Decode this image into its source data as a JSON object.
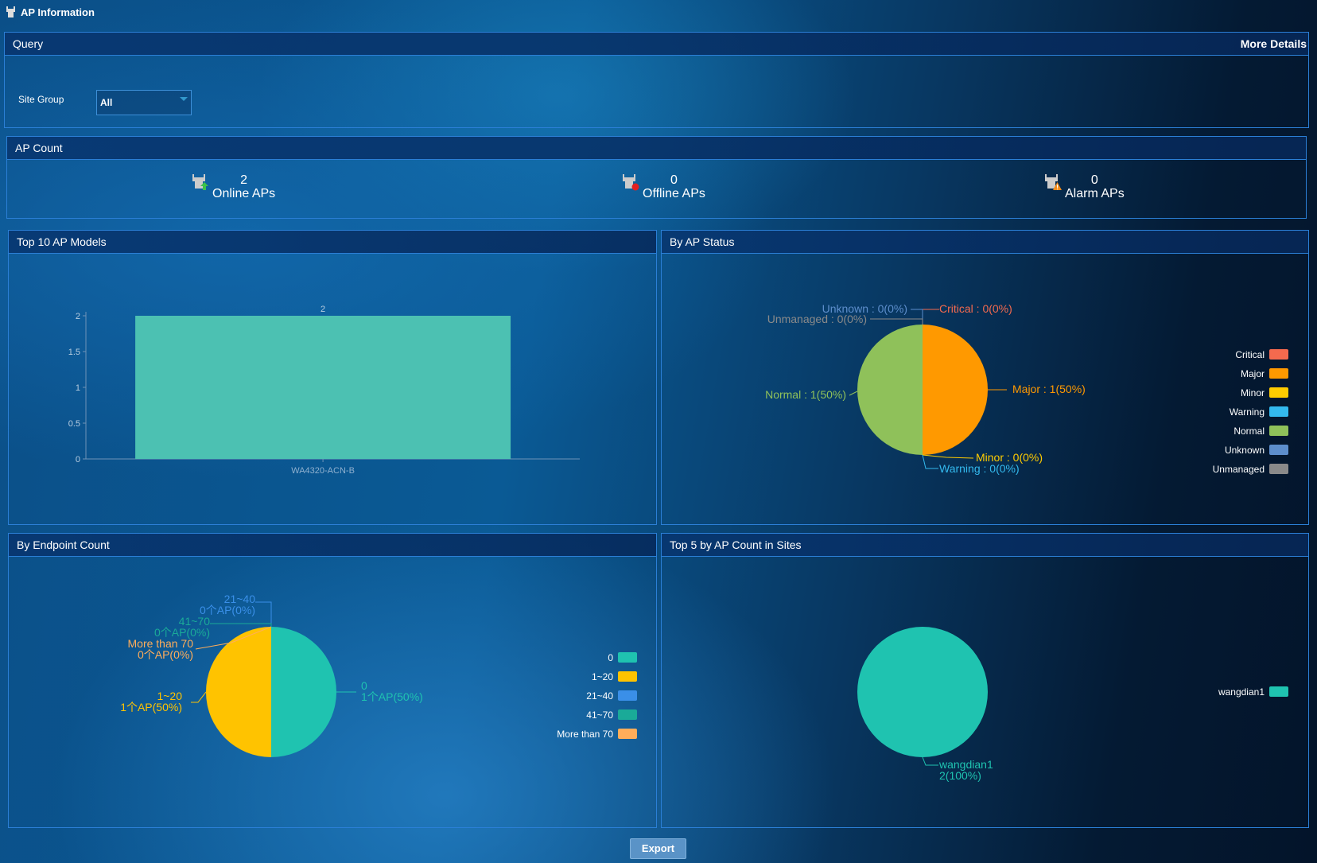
{
  "window": {
    "title": "AP Information"
  },
  "query": {
    "title": "Query",
    "more_details": "More Details",
    "site_group_label": "Site Group",
    "site_group_value": "All"
  },
  "ap_count": {
    "title": "AP Count",
    "items": [
      {
        "value": "2",
        "label": "Online APs",
        "icon": "ap-online-icon"
      },
      {
        "value": "0",
        "label": "Offline APs",
        "icon": "ap-offline-icon"
      },
      {
        "value": "0",
        "label": "Alarm APs",
        "icon": "ap-alarm-icon"
      }
    ]
  },
  "colors": {
    "accent_border": "#2b7fd6",
    "teal": "#1fc3b0",
    "bar": "#4cc1b2"
  },
  "chart_data": [
    {
      "id": "top10-models",
      "panel_title": "Top 10 AP Models",
      "type": "bar",
      "categories": [
        "WA4320-ACN-B"
      ],
      "values": [
        2
      ],
      "data_labels": [
        "2"
      ],
      "y_ticks": [
        "0",
        "0.5",
        "1",
        "1.5",
        "2"
      ],
      "ylim": [
        0,
        2
      ]
    },
    {
      "id": "by-status",
      "panel_title": "By AP Status",
      "type": "pie",
      "slices": [
        {
          "name": "Critical",
          "value": 0,
          "label": "Critical : 0(0%)",
          "color": "#f46a4e"
        },
        {
          "name": "Major",
          "value": 1,
          "label": "Major : 1(50%)",
          "color": "#ff9900"
        },
        {
          "name": "Minor",
          "value": 0,
          "label": "Minor : 0(0%)",
          "color": "#ffcc00"
        },
        {
          "name": "Warning",
          "value": 0,
          "label": "Warning : 0(0%)",
          "color": "#33b9ee"
        },
        {
          "name": "Normal",
          "value": 1,
          "label": "Normal : 1(50%)",
          "color": "#8fc15a"
        },
        {
          "name": "Unknown",
          "value": 0,
          "label": "Unknown : 0(0%)",
          "color": "#5d8ecc"
        },
        {
          "name": "Unmanaged",
          "value": 0,
          "label": "Unmanaged : 0(0%)",
          "color": "#8a8a8a"
        }
      ],
      "legend": [
        "Critical",
        "Major",
        "Minor",
        "Warning",
        "Normal",
        "Unknown",
        "Unmanaged"
      ],
      "legend_position": "right"
    },
    {
      "id": "by-endpoint",
      "panel_title": "By Endpoint Count",
      "type": "pie",
      "slices": [
        {
          "name": "0",
          "value": 1,
          "line2": "1个AP(50%)",
          "color": "#1fc3b0"
        },
        {
          "name": "1~20",
          "value": 1,
          "line2": "1个AP(50%)",
          "color": "#ffc300"
        },
        {
          "name": "21~40",
          "value": 0,
          "line2": "0个AP(0%)",
          "color": "#3a8fe8"
        },
        {
          "name": "41~70",
          "value": 0,
          "line2": "0个AP(0%)",
          "color": "#1aaa98"
        },
        {
          "name": "More than 70",
          "value": 0,
          "line2": "0个AP(0%)",
          "color": "#ffad5a"
        }
      ],
      "legend": [
        "0",
        "1~20",
        "21~40",
        "41~70",
        "More than 70"
      ],
      "legend_position": "right"
    },
    {
      "id": "top5-sites",
      "panel_title": "Top 5 by AP Count in Sites",
      "type": "pie",
      "slices": [
        {
          "name": "wangdian1",
          "value": 2,
          "line2": "2(100%)",
          "color": "#1fc3b0"
        }
      ],
      "legend": [
        "wangdian1"
      ],
      "legend_position": "right"
    }
  ],
  "footer": {
    "export_label": "Export"
  }
}
